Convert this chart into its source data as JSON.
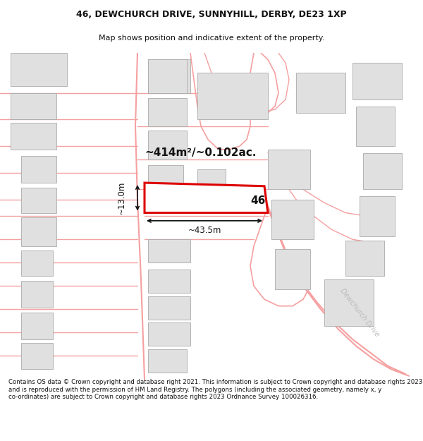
{
  "title_line1": "46, DEWCHURCH DRIVE, SUNNYHILL, DERBY, DE23 1XP",
  "title_line2": "Map shows position and indicative extent of the property.",
  "area_text": "~414m²/~0.102ac.",
  "number_label": "46",
  "dim_width": "~43.5m",
  "dim_height": "~13.0m",
  "street_label": "Dewchurch Drive",
  "footer_text": "Contains OS data © Crown copyright and database right 2021. This information is subject to Crown copyright and database rights 2023 and is reproduced with the permission of HM Land Registry. The polygons (including the associated geometry, namely x, y co-ordinates) are subject to Crown copyright and database rights 2023 Ordnance Survey 100026316.",
  "bg_color": "#ffffff",
  "map_bg_color": "#ffffff",
  "plot_fill": "#ffffff",
  "plot_border": "#dd0000",
  "neighbor_fill": "#e0e0e0",
  "neighbor_border": "#aaaaaa",
  "road_color": "#f5a0a0",
  "text_color": "#111111",
  "dim_color": "#111111",
  "street_label_color": "#bbbbbb"
}
